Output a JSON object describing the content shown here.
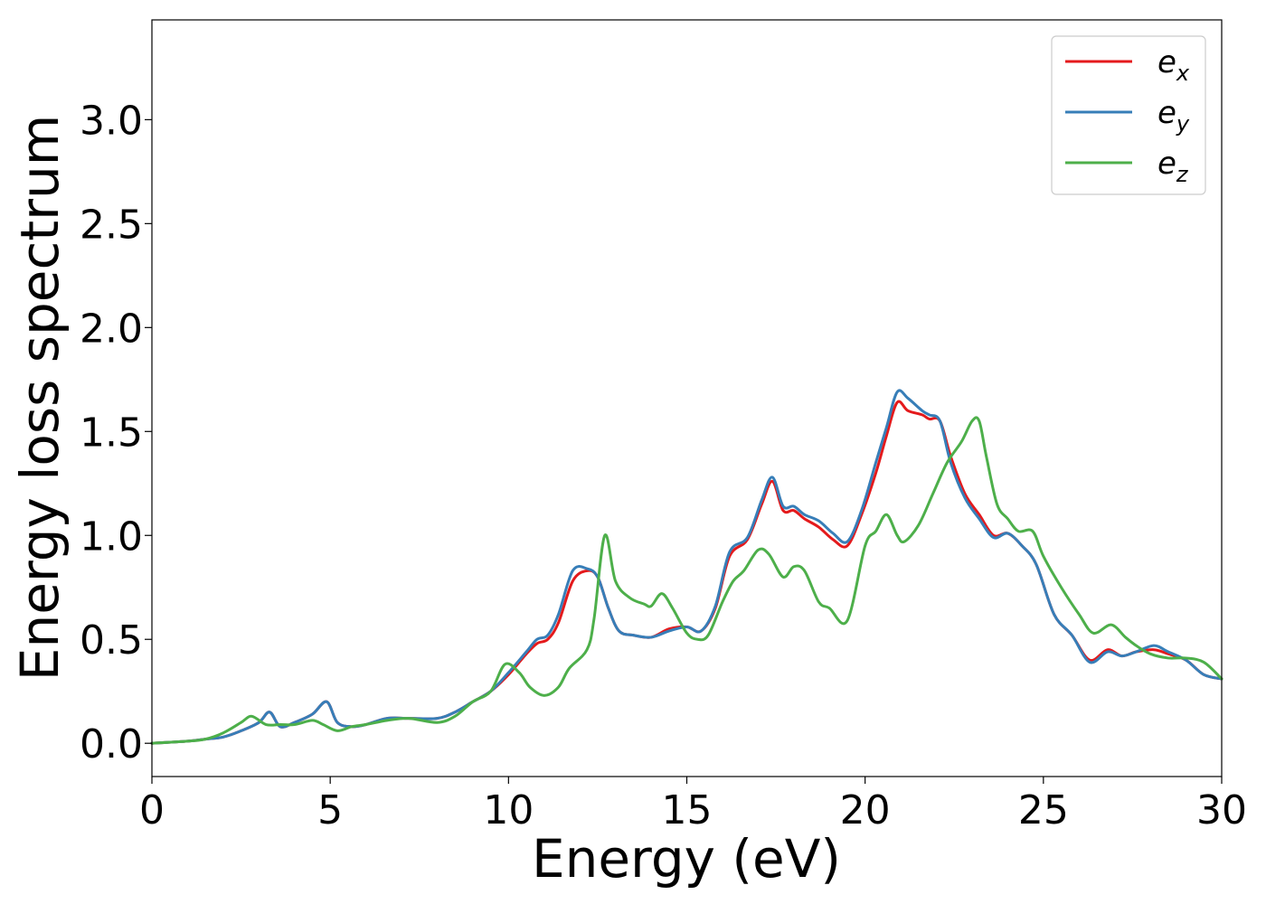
{
  "chart_data": {
    "type": "line",
    "xlabel": "Energy (eV)",
    "ylabel": "Energy loss spectrum",
    "xlim": [
      0,
      30
    ],
    "ylim": [
      -0.16,
      3.48
    ],
    "xticks": [
      0,
      5,
      10,
      15,
      20,
      25,
      30
    ],
    "xtick_labels": [
      "0",
      "5",
      "10",
      "15",
      "20",
      "25",
      "30"
    ],
    "yticks": [
      0.0,
      0.5,
      1.0,
      1.5,
      2.0,
      2.5,
      3.0
    ],
    "ytick_labels": [
      "0.0",
      "0.5",
      "1.0",
      "1.5",
      "2.0",
      "2.5",
      "3.0"
    ],
    "grid": false,
    "legend_position": "top-right",
    "series": [
      {
        "name": "e",
        "subscript": "x",
        "color": "#e41a1c",
        "points": [
          [
            0,
            0
          ],
          [
            1,
            0.01
          ],
          [
            1.5,
            0.02
          ],
          [
            2,
            0.03
          ],
          [
            2.5,
            0.06
          ],
          [
            3,
            0.1
          ],
          [
            3.3,
            0.15
          ],
          [
            3.6,
            0.08
          ],
          [
            4,
            0.1
          ],
          [
            4.5,
            0.14
          ],
          [
            4.9,
            0.2
          ],
          [
            5.2,
            0.1
          ],
          [
            5.6,
            0.08
          ],
          [
            6,
            0.09
          ],
          [
            6.6,
            0.12
          ],
          [
            7.2,
            0.12
          ],
          [
            8,
            0.12
          ],
          [
            8.5,
            0.15
          ],
          [
            9,
            0.2
          ],
          [
            9.5,
            0.25
          ],
          [
            10,
            0.33
          ],
          [
            10.5,
            0.43
          ],
          [
            10.8,
            0.48
          ],
          [
            11.1,
            0.5
          ],
          [
            11.4,
            0.58
          ],
          [
            11.8,
            0.78
          ],
          [
            12.2,
            0.83
          ],
          [
            12.5,
            0.8
          ],
          [
            12.8,
            0.65
          ],
          [
            13.1,
            0.54
          ],
          [
            13.5,
            0.52
          ],
          [
            14,
            0.51
          ],
          [
            14.5,
            0.55
          ],
          [
            15,
            0.56
          ],
          [
            15.4,
            0.54
          ],
          [
            15.8,
            0.65
          ],
          [
            16.2,
            0.9
          ],
          [
            16.7,
            0.98
          ],
          [
            17.1,
            1.15
          ],
          [
            17.4,
            1.26
          ],
          [
            17.7,
            1.12
          ],
          [
            18,
            1.12
          ],
          [
            18.3,
            1.08
          ],
          [
            18.7,
            1.04
          ],
          [
            19.1,
            0.98
          ],
          [
            19.5,
            0.95
          ],
          [
            19.9,
            1.1
          ],
          [
            20.3,
            1.3
          ],
          [
            20.6,
            1.48
          ],
          [
            20.9,
            1.64
          ],
          [
            21.2,
            1.6
          ],
          [
            21.6,
            1.58
          ],
          [
            21.8,
            1.56
          ],
          [
            22.1,
            1.55
          ],
          [
            22.4,
            1.38
          ],
          [
            22.8,
            1.2
          ],
          [
            23.2,
            1.1
          ],
          [
            23.6,
            1.0
          ],
          [
            24,
            1.01
          ],
          [
            24.4,
            0.95
          ],
          [
            24.8,
            0.86
          ],
          [
            25.3,
            0.62
          ],
          [
            25.8,
            0.52
          ],
          [
            26.3,
            0.4
          ],
          [
            26.8,
            0.45
          ],
          [
            27.2,
            0.42
          ],
          [
            27.6,
            0.44
          ],
          [
            28.1,
            0.45
          ],
          [
            28.5,
            0.43
          ],
          [
            29,
            0.4
          ],
          [
            29.5,
            0.33
          ],
          [
            30,
            0.31
          ]
        ]
      },
      {
        "name": "e",
        "subscript": "y",
        "color": "#377eb8",
        "points": [
          [
            0,
            0
          ],
          [
            1,
            0.01
          ],
          [
            1.5,
            0.02
          ],
          [
            2,
            0.03
          ],
          [
            2.5,
            0.06
          ],
          [
            3,
            0.1
          ],
          [
            3.3,
            0.15
          ],
          [
            3.6,
            0.08
          ],
          [
            4,
            0.1
          ],
          [
            4.5,
            0.14
          ],
          [
            4.9,
            0.2
          ],
          [
            5.2,
            0.1
          ],
          [
            5.6,
            0.08
          ],
          [
            6,
            0.09
          ],
          [
            6.6,
            0.12
          ],
          [
            7.2,
            0.12
          ],
          [
            8,
            0.12
          ],
          [
            8.5,
            0.15
          ],
          [
            9,
            0.2
          ],
          [
            9.5,
            0.25
          ],
          [
            10,
            0.34
          ],
          [
            10.5,
            0.44
          ],
          [
            10.8,
            0.5
          ],
          [
            11.1,
            0.52
          ],
          [
            11.4,
            0.62
          ],
          [
            11.8,
            0.83
          ],
          [
            12.2,
            0.84
          ],
          [
            12.5,
            0.8
          ],
          [
            12.8,
            0.65
          ],
          [
            13.1,
            0.54
          ],
          [
            13.5,
            0.52
          ],
          [
            14,
            0.51
          ],
          [
            14.5,
            0.54
          ],
          [
            15,
            0.56
          ],
          [
            15.4,
            0.54
          ],
          [
            15.8,
            0.66
          ],
          [
            16.2,
            0.92
          ],
          [
            16.7,
            0.99
          ],
          [
            17.1,
            1.17
          ],
          [
            17.4,
            1.28
          ],
          [
            17.7,
            1.14
          ],
          [
            18,
            1.14
          ],
          [
            18.3,
            1.1
          ],
          [
            18.7,
            1.07
          ],
          [
            19.1,
            1.01
          ],
          [
            19.5,
            0.97
          ],
          [
            19.9,
            1.12
          ],
          [
            20.3,
            1.35
          ],
          [
            20.6,
            1.52
          ],
          [
            20.9,
            1.69
          ],
          [
            21.2,
            1.66
          ],
          [
            21.6,
            1.6
          ],
          [
            21.8,
            1.58
          ],
          [
            22.1,
            1.55
          ],
          [
            22.4,
            1.35
          ],
          [
            22.8,
            1.18
          ],
          [
            23.2,
            1.08
          ],
          [
            23.6,
            0.99
          ],
          [
            24,
            1.01
          ],
          [
            24.4,
            0.95
          ],
          [
            24.8,
            0.86
          ],
          [
            25.3,
            0.62
          ],
          [
            25.8,
            0.52
          ],
          [
            26.3,
            0.39
          ],
          [
            26.8,
            0.44
          ],
          [
            27.2,
            0.42
          ],
          [
            27.6,
            0.44
          ],
          [
            28.1,
            0.47
          ],
          [
            28.5,
            0.44
          ],
          [
            29,
            0.4
          ],
          [
            29.5,
            0.33
          ],
          [
            30,
            0.31
          ]
        ]
      },
      {
        "name": "e",
        "subscript": "z",
        "color": "#4daf4a",
        "points": [
          [
            0,
            0
          ],
          [
            1,
            0.01
          ],
          [
            1.5,
            0.02
          ],
          [
            2,
            0.05
          ],
          [
            2.5,
            0.1
          ],
          [
            2.8,
            0.13
          ],
          [
            3.2,
            0.09
          ],
          [
            3.6,
            0.09
          ],
          [
            4,
            0.09
          ],
          [
            4.5,
            0.11
          ],
          [
            4.8,
            0.09
          ],
          [
            5.2,
            0.06
          ],
          [
            5.6,
            0.08
          ],
          [
            6,
            0.09
          ],
          [
            6.6,
            0.11
          ],
          [
            7.2,
            0.12
          ],
          [
            8,
            0.1
          ],
          [
            8.5,
            0.13
          ],
          [
            9,
            0.2
          ],
          [
            9.5,
            0.25
          ],
          [
            9.9,
            0.38
          ],
          [
            10.3,
            0.34
          ],
          [
            10.6,
            0.27
          ],
          [
            11,
            0.23
          ],
          [
            11.4,
            0.27
          ],
          [
            11.7,
            0.36
          ],
          [
            12.2,
            0.45
          ],
          [
            12.4,
            0.6
          ],
          [
            12.7,
            1.0
          ],
          [
            13,
            0.78
          ],
          [
            13.4,
            0.7
          ],
          [
            13.8,
            0.67
          ],
          [
            14,
            0.66
          ],
          [
            14.3,
            0.72
          ],
          [
            14.6,
            0.65
          ],
          [
            15,
            0.53
          ],
          [
            15.3,
            0.5
          ],
          [
            15.6,
            0.52
          ],
          [
            16,
            0.68
          ],
          [
            16.3,
            0.78
          ],
          [
            16.6,
            0.83
          ],
          [
            17,
            0.93
          ],
          [
            17.3,
            0.91
          ],
          [
            17.7,
            0.8
          ],
          [
            18,
            0.85
          ],
          [
            18.3,
            0.83
          ],
          [
            18.7,
            0.68
          ],
          [
            19,
            0.65
          ],
          [
            19.5,
            0.59
          ],
          [
            20,
            0.95
          ],
          [
            20.3,
            1.02
          ],
          [
            20.6,
            1.1
          ],
          [
            20.9,
            1.0
          ],
          [
            21.1,
            0.97
          ],
          [
            21.5,
            1.05
          ],
          [
            21.9,
            1.2
          ],
          [
            22.3,
            1.35
          ],
          [
            22.7,
            1.45
          ],
          [
            23,
            1.55
          ],
          [
            23.2,
            1.55
          ],
          [
            23.4,
            1.38
          ],
          [
            23.7,
            1.15
          ],
          [
            24,
            1.08
          ],
          [
            24.3,
            1.02
          ],
          [
            24.7,
            1.02
          ],
          [
            25,
            0.9
          ],
          [
            25.5,
            0.75
          ],
          [
            26,
            0.62
          ],
          [
            26.4,
            0.53
          ],
          [
            26.9,
            0.57
          ],
          [
            27.3,
            0.51
          ],
          [
            27.6,
            0.47
          ],
          [
            28,
            0.43
          ],
          [
            28.5,
            0.41
          ],
          [
            29,
            0.41
          ],
          [
            29.5,
            0.39
          ],
          [
            30,
            0.31
          ]
        ]
      }
    ]
  }
}
